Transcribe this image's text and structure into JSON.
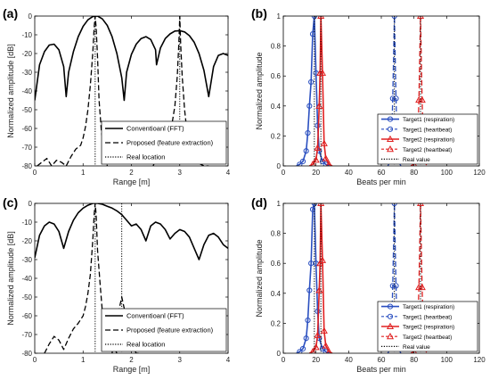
{
  "chart_data": [
    {
      "id": "a",
      "type": "line",
      "panel_label": "(a)",
      "xlabel": "Range [m]",
      "ylabel": "Normalized amplitude [dB]",
      "xlim": [
        0,
        4
      ],
      "ylim": [
        -80,
        0
      ],
      "xticks": [
        0,
        1,
        2,
        3,
        4
      ],
      "yticks": [
        0,
        -10,
        -20,
        -30,
        -40,
        -50,
        -60,
        -70,
        -80
      ],
      "grid": false,
      "legend": {
        "placement": "lower-right",
        "entries": [
          "Conventioanl (FFT)",
          "Proposed (feature extraction)",
          "Real location"
        ]
      },
      "series": [
        {
          "name": "Conventioanl (FFT)",
          "style": "solid",
          "x": [
            0,
            0.1,
            0.2,
            0.3,
            0.4,
            0.5,
            0.6,
            0.65,
            0.7,
            0.8,
            0.9,
            1.0,
            1.1,
            1.2,
            1.3,
            1.4,
            1.5,
            1.6,
            1.7,
            1.8,
            1.85,
            1.9,
            2.0,
            2.1,
            2.2,
            2.3,
            2.4,
            2.5,
            2.52,
            2.6,
            2.7,
            2.8,
            2.9,
            3.0,
            3.1,
            3.2,
            3.3,
            3.4,
            3.5,
            3.6,
            3.7,
            3.8,
            3.9,
            4.0
          ],
          "y": [
            -45,
            -26,
            -19,
            -15.5,
            -15,
            -18,
            -27,
            -43,
            -30,
            -19,
            -11,
            -5.5,
            -2,
            -0.3,
            0,
            -1.5,
            -5,
            -11,
            -20,
            -33,
            -45,
            -30,
            -20.5,
            -15,
            -12,
            -11,
            -12.5,
            -18,
            -26,
            -17,
            -12,
            -9.5,
            -8,
            -7.8,
            -8.5,
            -10.5,
            -14,
            -20,
            -29,
            -43,
            -27,
            -21,
            -20,
            -21
          ]
        },
        {
          "name": "Proposed (feature extraction)",
          "style": "dashed",
          "segments": [
            {
              "x": [
                0.05,
                0.15,
                0.25,
                0.35,
                0.45,
                0.55,
                0.65,
                0.75,
                0.85,
                0.95,
                1.0,
                1.05,
                1.1,
                1.15,
                1.2,
                1.23,
                1.25,
                1.27,
                1.3,
                1.33,
                1.38,
                1.45,
                1.5
              ],
              "y": [
                -80,
                -78,
                -76,
                -80,
                -77,
                -78,
                -80,
                -75,
                -71,
                -69,
                -65,
                -59,
                -50,
                -37,
                -20,
                -6,
                0,
                -6,
                -22,
                -45,
                -62,
                -72,
                -80
              ]
            },
            {
              "x": [
                2.45,
                2.55,
                2.65,
                2.75,
                2.85,
                2.9,
                2.95,
                2.98,
                3.0,
                3.02,
                3.05,
                3.1,
                3.15,
                3.25,
                3.35,
                3.5,
                3.6
              ],
              "y": [
                -80,
                -74,
                -70,
                -65,
                -56,
                -48,
                -32,
                -15,
                0,
                -15,
                -32,
                -50,
                -62,
                -72,
                -78,
                -80,
                -80
              ]
            }
          ]
        },
        {
          "name": "Real location",
          "style": "dotted",
          "vlines": [
            1.25,
            3.0
          ]
        }
      ]
    },
    {
      "id": "b",
      "type": "line",
      "panel_label": "(b)",
      "xlabel": "Beats per min",
      "ylabel": "Normalized amplitude",
      "xlim": [
        0,
        120
      ],
      "ylim": [
        0,
        1
      ],
      "xticks": [
        0,
        20,
        40,
        60,
        80,
        100,
        120
      ],
      "yticks": [
        0,
        0.2,
        0.4,
        0.6,
        0.8,
        1
      ],
      "ytick_labels": [
        "0",
        "0.2",
        "0.4",
        "0.6",
        "0.8",
        "1"
      ],
      "grid": false,
      "legend": {
        "placement": "lower-right",
        "entries": [
          "Target1 (respiration)",
          "Target1 (heartbeat)",
          "Target2 (respiration)",
          "Target2 (heartbeat)",
          "Real value"
        ]
      },
      "series": [
        {
          "name": "Target1 (respiration)",
          "color": "#2a4fc0",
          "style": "solid",
          "marker": "circle",
          "x": [
            8,
            10,
            12,
            14,
            15,
            16,
            17,
            18,
            19,
            20,
            21,
            22,
            24,
            26,
            28
          ],
          "y": [
            0.0,
            0.01,
            0.03,
            0.1,
            0.22,
            0.4,
            0.56,
            0.88,
            1.0,
            0.62,
            0.27,
            0.1,
            0.03,
            0.01,
            0.0
          ]
        },
        {
          "name": "Target1 (heartbeat)",
          "color": "#2a4fc0",
          "style": "dashed",
          "marker": "circle",
          "x": [
            64,
            66,
            67,
            68,
            69,
            70,
            72
          ],
          "y": [
            0.0,
            0.04,
            0.45,
            1.0,
            0.45,
            0.04,
            0.0
          ]
        },
        {
          "name": "Target2 (respiration)",
          "color": "#e02020",
          "style": "solid",
          "marker": "triangle",
          "x": [
            16,
            18,
            20,
            21,
            22,
            22.5,
            23,
            24,
            25,
            26,
            28,
            30
          ],
          "y": [
            0.0,
            0.01,
            0.04,
            0.12,
            0.4,
            0.62,
            1.0,
            0.62,
            0.15,
            0.05,
            0.01,
            0.0
          ]
        },
        {
          "name": "Target2 (heartbeat)",
          "color": "#e02020",
          "style": "dashed",
          "marker": "triangle",
          "x": [
            78,
            80,
            82,
            83,
            84,
            85,
            86,
            88
          ],
          "y": [
            0.0,
            0.01,
            0.06,
            0.44,
            1.0,
            0.44,
            0.04,
            0.0
          ]
        },
        {
          "name": "Real value",
          "style": "dotted",
          "color": "#000000",
          "vlines": [
            19,
            23,
            68,
            84
          ]
        }
      ]
    },
    {
      "id": "c",
      "type": "line",
      "panel_label": "(c)",
      "xlabel": "Range [m]",
      "ylabel": "Normalized amplitude [dB]",
      "xlim": [
        0,
        4
      ],
      "ylim": [
        -80,
        0
      ],
      "xticks": [
        0,
        1,
        2,
        3,
        4
      ],
      "yticks": [
        0,
        -10,
        -20,
        -30,
        -40,
        -50,
        -60,
        -70,
        -80
      ],
      "grid": false,
      "legend": {
        "placement": "lower-right",
        "entries": [
          "Conventioanl (FFT)",
          "Proposed (feature extraction)",
          "Real location"
        ]
      },
      "series": [
        {
          "name": "Conventioanl (FFT)",
          "style": "solid",
          "x": [
            0,
            0.1,
            0.2,
            0.3,
            0.4,
            0.5,
            0.6,
            0.7,
            0.8,
            0.9,
            1.0,
            1.1,
            1.2,
            1.3,
            1.4,
            1.5,
            1.6,
            1.7,
            1.8,
            1.9,
            2.0,
            2.1,
            2.2,
            2.3,
            2.4,
            2.5,
            2.6,
            2.7,
            2.8,
            2.9,
            3.0,
            3.1,
            3.2,
            3.3,
            3.4,
            3.5,
            3.6,
            3.7,
            3.8,
            3.9,
            4.0
          ],
          "y": [
            -29,
            -17,
            -12,
            -10,
            -11,
            -15,
            -24,
            -15,
            -9,
            -5,
            -2.5,
            -1,
            0,
            0,
            -0.5,
            -1.5,
            -2.5,
            -4,
            -6,
            -9,
            -12,
            -11,
            -14,
            -20,
            -12,
            -10,
            -11,
            -14,
            -19,
            -16,
            -14,
            -15,
            -18,
            -24,
            -30,
            -22,
            -17,
            -16,
            -18,
            -22,
            -24
          ]
        },
        {
          "name": "Proposed (feature extraction)",
          "style": "dashed",
          "segments": [
            {
              "x": [
                0.2,
                0.3,
                0.4,
                0.5,
                0.6,
                0.7,
                0.8,
                0.9,
                1.0,
                1.05,
                1.1,
                1.15,
                1.2,
                1.23,
                1.25,
                1.27,
                1.3,
                1.35,
                1.4,
                1.5,
                1.6,
                1.7
              ],
              "y": [
                -80,
                -75,
                -71,
                -73,
                -78,
                -72,
                -67,
                -64,
                -60,
                -55,
                -48,
                -38,
                -20,
                -6,
                0,
                -6,
                -25,
                -42,
                -58,
                -68,
                -75,
                -80
              ]
            },
            {
              "x": [
                1.6,
                1.7,
                1.75,
                1.8,
                1.85,
                1.9,
                2.0,
                2.1,
                2.2
              ],
              "y": [
                -80,
                -63,
                -56,
                -50,
                -56,
                -64,
                -75,
                -80,
                -80
              ]
            }
          ]
        },
        {
          "name": "Real location",
          "style": "dotted",
          "vlines": [
            1.25,
            1.8
          ]
        }
      ]
    },
    {
      "id": "d",
      "type": "line",
      "panel_label": "(d)",
      "xlabel": "Beats per min",
      "ylabel": "Normalized amplitude",
      "xlim": [
        0,
        120
      ],
      "ylim": [
        0,
        1
      ],
      "xticks": [
        0,
        20,
        40,
        60,
        80,
        100,
        120
      ],
      "yticks": [
        0,
        0.2,
        0.4,
        0.6,
        0.8,
        1
      ],
      "ytick_labels": [
        "0",
        "0.2",
        "0.4",
        "0.6",
        "0.8",
        "1"
      ],
      "grid": false,
      "legend": {
        "placement": "lower-right",
        "entries": [
          "Target1 (respiration)",
          "Target1 (heartbeat)",
          "Target2 (respiration)",
          "Target2 (heartbeat)",
          "Real value"
        ]
      },
      "series": [
        {
          "name": "Target1 (respiration)",
          "color": "#2a4fc0",
          "style": "solid",
          "marker": "circle",
          "x": [
            8,
            10,
            12,
            14,
            15,
            16,
            17,
            18,
            19,
            20,
            21,
            22,
            24,
            26,
            28
          ],
          "y": [
            0.0,
            0.01,
            0.03,
            0.1,
            0.22,
            0.42,
            0.6,
            0.96,
            1.0,
            0.6,
            0.28,
            0.1,
            0.03,
            0.01,
            0.0
          ]
        },
        {
          "name": "Target1 (heartbeat)",
          "color": "#2a4fc0",
          "style": "dashed",
          "marker": "circle",
          "x": [
            64,
            66,
            67,
            68,
            69,
            70,
            72
          ],
          "y": [
            0.0,
            0.04,
            0.45,
            1.0,
            0.45,
            0.04,
            0.0
          ]
        },
        {
          "name": "Target2 (respiration)",
          "color": "#e02020",
          "style": "solid",
          "marker": "triangle",
          "x": [
            16,
            18,
            20,
            21,
            22,
            22.5,
            23,
            24,
            25,
            26,
            28,
            30
          ],
          "y": [
            0.0,
            0.01,
            0.04,
            0.12,
            0.42,
            0.6,
            1.0,
            0.62,
            0.15,
            0.05,
            0.01,
            0.0
          ]
        },
        {
          "name": "Target2 (heartbeat)",
          "color": "#e02020",
          "style": "dashed",
          "marker": "triangle",
          "x": [
            78,
            80,
            82,
            83,
            84,
            85,
            86,
            88
          ],
          "y": [
            0.0,
            0.01,
            0.06,
            0.44,
            1.0,
            0.44,
            0.04,
            0.0
          ]
        },
        {
          "name": "Real value",
          "style": "dotted",
          "color": "#000000",
          "vlines": [
            19,
            23,
            68,
            84
          ]
        }
      ]
    }
  ]
}
